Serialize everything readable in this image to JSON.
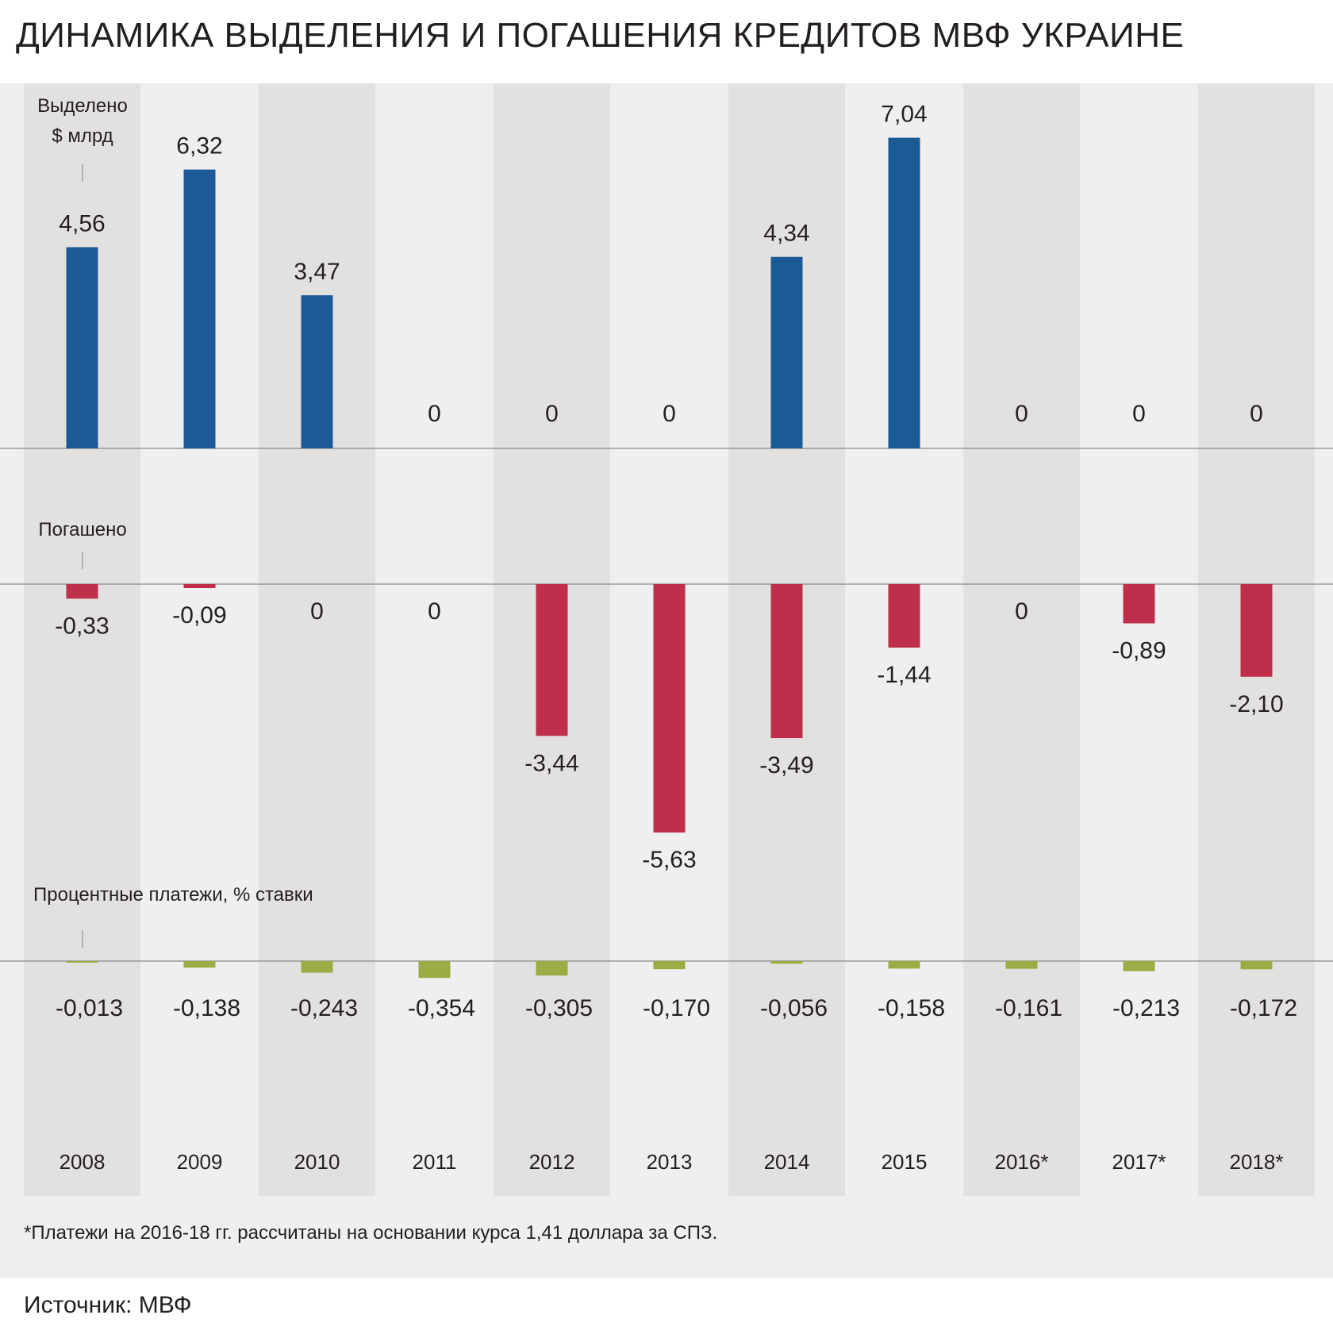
{
  "title": "ДИНАМИКА ВЫДЕЛЕНИЯ И ПОГАШЕНИЯ КРЕДИТОВ МВФ УКРАИНЕ",
  "footnote": "*Платежи на 2016-18 гг. рассчитаны на основании курса 1,41 доллара за СПЗ.",
  "source": "Источник: МВФ",
  "colors": {
    "allocated": "#1c5a96",
    "repaid": "#be2f4b",
    "interest": "#9aad45",
    "band_dark": "#e3e1df",
    "background": "#efefef"
  },
  "chart_data": [
    {
      "type": "bar",
      "section_label": "Выделено",
      "unit_label": "$ млрд",
      "categories": [
        "2008",
        "2009",
        "2010",
        "2011",
        "2012",
        "2013",
        "2014",
        "2015",
        "2016*",
        "2017*",
        "2018*"
      ],
      "values": [
        4.56,
        6.32,
        3.47,
        0,
        0,
        0,
        4.34,
        7.04,
        0,
        0,
        0
      ],
      "value_labels": [
        "4,56",
        "6,32",
        "3,47",
        "0",
        "0",
        "0",
        "4,34",
        "7,04",
        "0",
        "0",
        "0"
      ],
      "color": "#1c5a96"
    },
    {
      "type": "bar",
      "section_label": "Погашено",
      "categories": [
        "2008",
        "2009",
        "2010",
        "2011",
        "2012",
        "2013",
        "2014",
        "2015",
        "2016*",
        "2017*",
        "2018*"
      ],
      "values": [
        -0.33,
        -0.09,
        0,
        0,
        -3.44,
        -5.63,
        -3.49,
        -1.44,
        0,
        -0.89,
        -2.1
      ],
      "value_labels": [
        "-0,33",
        "-0,09",
        "0",
        "0",
        "-3,44",
        "-5,63",
        "-3,49",
        "-1,44",
        "0",
        "-0,89",
        "-2,10"
      ],
      "color": "#be2f4b"
    },
    {
      "type": "bar",
      "section_label": "Процентные платежи, % ставки",
      "categories": [
        "2008",
        "2009",
        "2010",
        "2011",
        "2012",
        "2013",
        "2014",
        "2015",
        "2016*",
        "2017*",
        "2018*"
      ],
      "values": [
        -0.013,
        -0.138,
        -0.243,
        -0.354,
        -0.305,
        -0.17,
        -0.056,
        -0.158,
        -0.161,
        -0.213,
        -0.172
      ],
      "value_labels": [
        "-0,013",
        "-0,138",
        "-0,243",
        "-0,354",
        "-0,305",
        "-0,170",
        "-0,056",
        "-0,158",
        "-0,161",
        "-0,213",
        "-0,172"
      ],
      "color": "#9aad45"
    }
  ]
}
